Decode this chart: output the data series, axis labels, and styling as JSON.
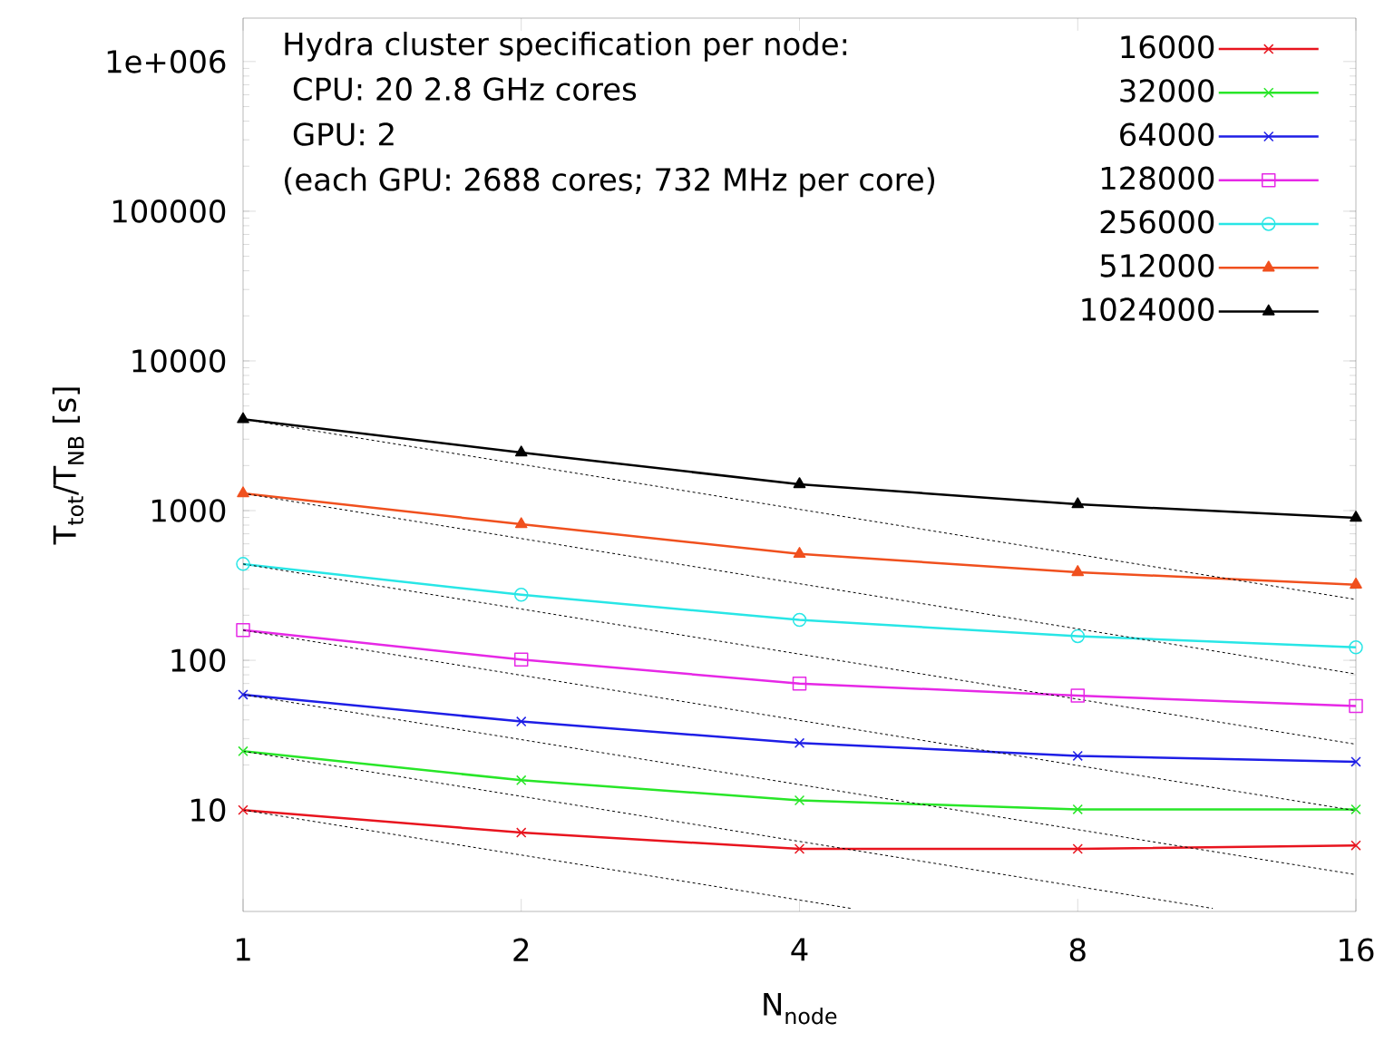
{
  "chart_data": {
    "type": "line",
    "xlabel": "N$_{node}$",
    "ylabel": "T$_{tot}$/T$_{NB}$ [s]",
    "annotations": [
      "Hydra cluster specification per node:",
      " CPU: 20 2.8 GHz cores",
      " GPU: 2",
      "(each GPU: 2688 cores; 732 MHz per core)"
    ],
    "x": [
      1,
      2,
      4,
      8,
      16
    ],
    "log": "xy",
    "xlim": [
      1,
      16
    ],
    "xticks": [
      1,
      2,
      4,
      8,
      16
    ],
    "ylim": [
      2.1,
      1950000
    ],
    "yticks": [
      10,
      100,
      1000,
      10000,
      100000,
      {
        "value": 1000000,
        "label": "1e+006"
      }
    ],
    "legend": "top right",
    "grid": false,
    "series": [
      {
        "name": "16000",
        "color": "#e8141e",
        "marker": "cross",
        "values": [
          10,
          7.06,
          5.5,
          5.5,
          5.8
        ]
      },
      {
        "name": "32000",
        "color": "#28e628",
        "marker": "cross",
        "values": [
          24.7,
          15.8,
          11.6,
          10.1,
          10.1
        ]
      },
      {
        "name": "64000",
        "color": "#1e1ee6",
        "marker": "cross",
        "values": [
          59,
          39,
          28,
          23,
          21
        ]
      },
      {
        "name": "128000",
        "color": "#e628e6",
        "marker": "square",
        "values": [
          159,
          101,
          70,
          58,
          49.5
        ]
      },
      {
        "name": "256000",
        "color": "#28e6e6",
        "marker": "circle",
        "values": [
          440,
          274,
          186,
          145,
          122
        ]
      },
      {
        "name": "512000",
        "color": "#f0501e",
        "marker": "triangle",
        "values": [
          1303,
          811,
          513,
          388,
          320
        ]
      },
      {
        "name": "1024000",
        "color": "#000000",
        "marker": "triangle",
        "values": [
          4074,
          2440,
          1500,
          1102,
          895
        ]
      },
      {
        "color": "#000000",
        "line_style": "dashed",
        "marker": "none",
        "x": [
          1,
          4.55
        ],
        "values": [
          10,
          2.2
        ]
      },
      {
        "color": "#000000",
        "line_style": "dashed",
        "marker": "none",
        "x": [
          1,
          11.2
        ],
        "values": [
          24.7,
          2.2
        ]
      },
      {
        "color": "#000000",
        "line_style": "dashed",
        "marker": "none",
        "x": [
          1,
          16
        ],
        "values": [
          59,
          3.7
        ]
      },
      {
        "color": "#000000",
        "line_style": "dashed",
        "marker": "none",
        "x": [
          1,
          16
        ],
        "values": [
          159,
          9.9
        ]
      },
      {
        "color": "#000000",
        "line_style": "dashed",
        "marker": "none",
        "x": [
          1,
          16
        ],
        "values": [
          440,
          27.5
        ]
      },
      {
        "color": "#000000",
        "line_style": "dashed",
        "marker": "none",
        "x": [
          1,
          16
        ],
        "values": [
          1303,
          81
        ]
      },
      {
        "color": "#000000",
        "line_style": "dashed",
        "marker": "none",
        "x": [
          1,
          16
        ],
        "values": [
          4074,
          255
        ]
      }
    ]
  }
}
